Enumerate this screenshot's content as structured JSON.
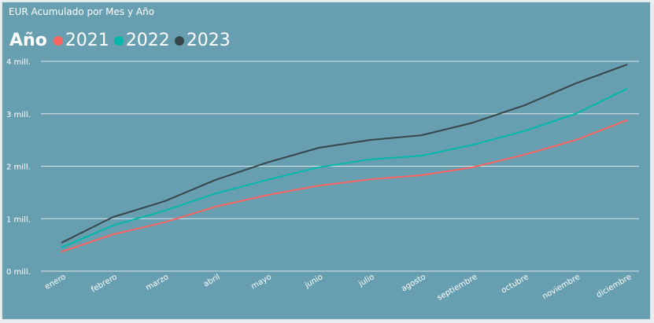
{
  "chart_data": {
    "type": "line",
    "title": "EUR Acumulado por Mes y Año",
    "legend_title": "Año",
    "legend_position": "top-left",
    "grid": true,
    "categories": [
      "enero",
      "febrero",
      "marzo",
      "abril",
      "mayo",
      "junio",
      "julio",
      "agosto",
      "septiembre",
      "octubre",
      "noviembre",
      "diciembre"
    ],
    "yticks": [
      0,
      1,
      2,
      3,
      4
    ],
    "ytick_labels": [
      "0 mill.",
      "1 mill.",
      "2 mill.",
      "3 mill.",
      "4 mill."
    ],
    "ylim": [
      0,
      4
    ],
    "y_unit": "millions EUR",
    "series": [
      {
        "name": "2021",
        "color": "#fd625e",
        "values": [
          0.37,
          0.7,
          0.93,
          1.23,
          1.45,
          1.63,
          1.75,
          1.83,
          1.98,
          2.22,
          2.5,
          2.88
        ]
      },
      {
        "name": "2022",
        "color": "#01b8aa",
        "values": [
          0.45,
          0.87,
          1.15,
          1.48,
          1.74,
          1.98,
          2.13,
          2.2,
          2.41,
          2.67,
          3.0,
          3.48
        ]
      },
      {
        "name": "2023",
        "color": "#374649",
        "values": [
          0.54,
          1.03,
          1.33,
          1.74,
          2.07,
          2.35,
          2.5,
          2.59,
          2.83,
          3.16,
          3.58,
          3.94
        ]
      }
    ]
  }
}
